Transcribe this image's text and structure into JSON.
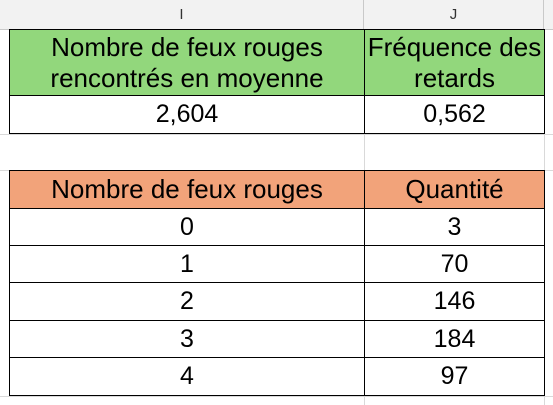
{
  "columns": {
    "col_i": "I",
    "col_j": "J"
  },
  "summary": {
    "header_left": "Nombre de feux rouges rencontrés en moyenne",
    "header_right": "Fréquence des retards",
    "value_left": "2,604",
    "value_right": "0,562"
  },
  "table": {
    "header_left": "Nombre de feux rouges",
    "header_right": "Quantité",
    "rows": [
      {
        "feux": "0",
        "quantite": "3"
      },
      {
        "feux": "1",
        "quantite": "70"
      },
      {
        "feux": "2",
        "quantite": "146"
      },
      {
        "feux": "3",
        "quantite": "184"
      },
      {
        "feux": "4",
        "quantite": "97"
      }
    ]
  },
  "colors": {
    "summary_header": "#92d77c",
    "table_header": "#f2a37a"
  }
}
